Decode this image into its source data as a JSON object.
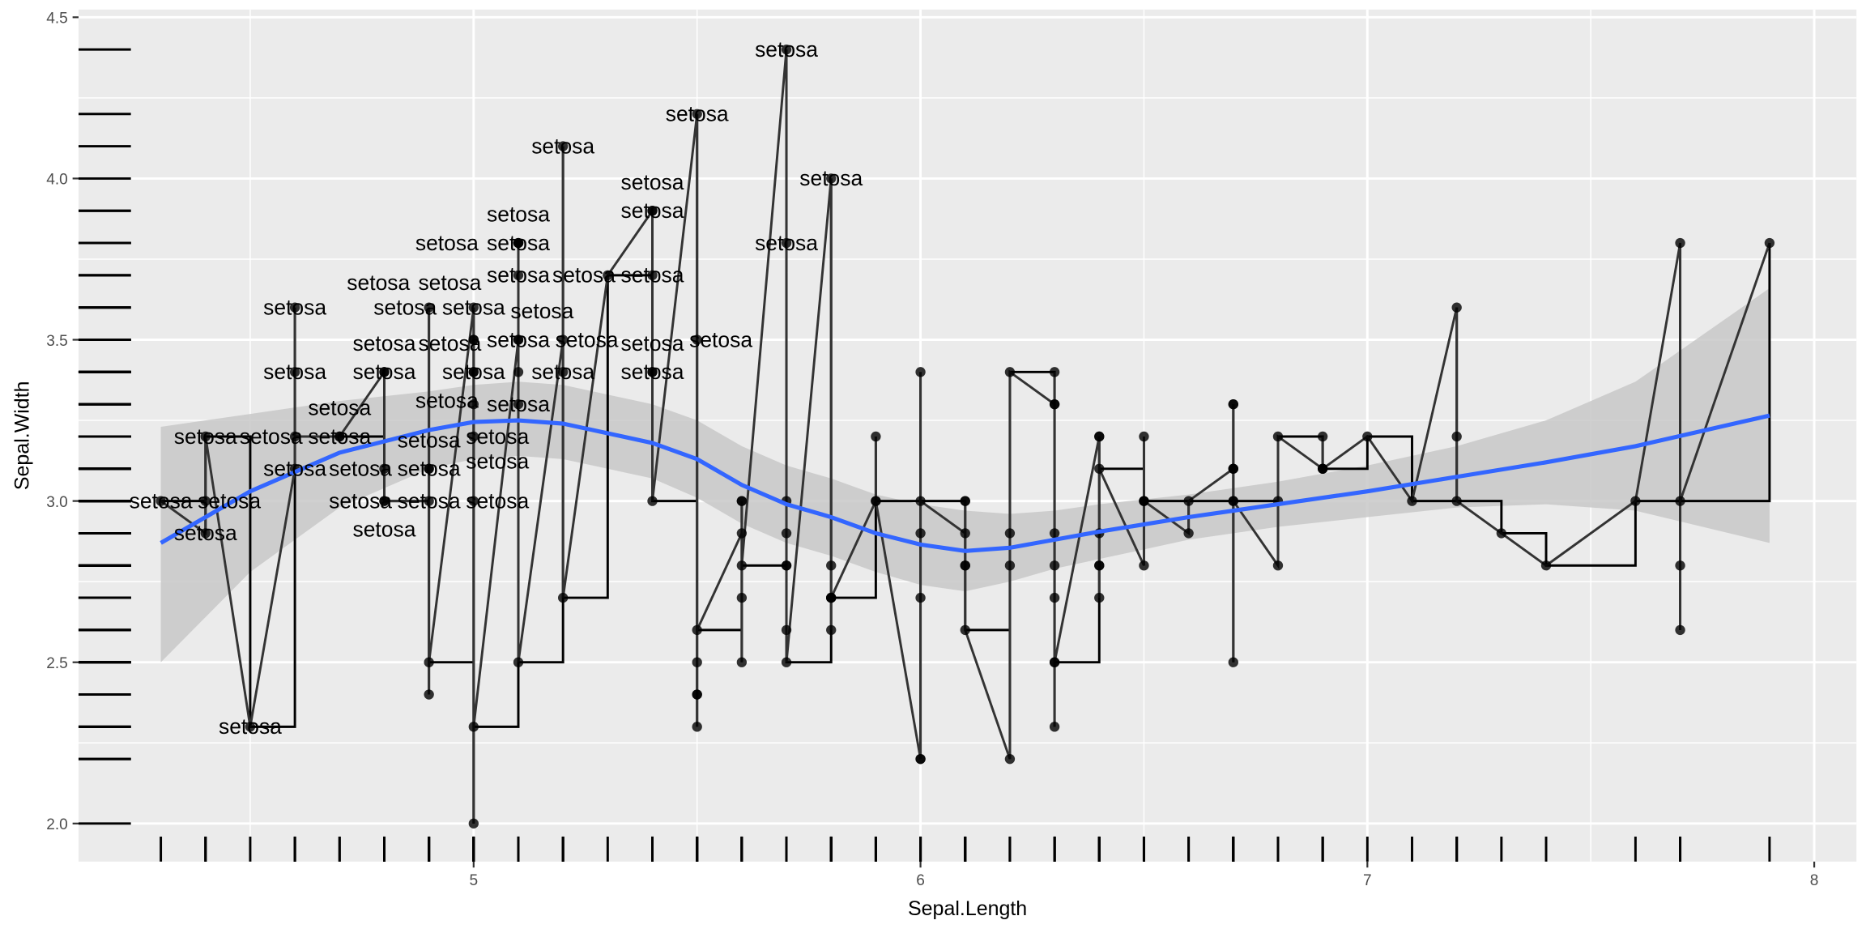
{
  "chart_data": {
    "type": "scatter",
    "title": "",
    "xlabel": "Sepal.Length",
    "ylabel": "Sepal.Width",
    "xlim": [
      4.18,
      8.08
    ],
    "ylim": [
      1.88,
      4.52
    ],
    "x_ticks": [
      5,
      6,
      7,
      8
    ],
    "x_tick_labels": [
      "5",
      "6",
      "7",
      "8"
    ],
    "y_ticks": [
      2.0,
      2.5,
      3.0,
      3.5,
      4.0,
      4.5
    ],
    "y_tick_labels": [
      "2.0",
      "2.5",
      "3.0",
      "3.5",
      "4.0",
      "4.5"
    ],
    "grid": true,
    "label_text": "setosa",
    "colors": {
      "panel": "#ebebeb",
      "grid": "#ffffff",
      "points": "#000000",
      "step": "#000000",
      "line": "#333333",
      "smooth": "#3366ff",
      "band": "#c8c8c8"
    },
    "layers": [
      "point",
      "text (setosa only)",
      "step",
      "line",
      "smooth (loess) with CI band",
      "rug (left, bottom)"
    ],
    "points": [
      [
        5.1,
        3.5,
        "setosa"
      ],
      [
        4.9,
        3.0,
        "setosa"
      ],
      [
        4.7,
        3.2,
        "setosa"
      ],
      [
        4.6,
        3.1,
        "setosa"
      ],
      [
        5.0,
        3.6,
        "setosa"
      ],
      [
        5.4,
        3.9,
        "setosa"
      ],
      [
        4.6,
        3.4,
        "setosa"
      ],
      [
        5.0,
        3.4,
        "setosa"
      ],
      [
        4.4,
        2.9,
        "setosa"
      ],
      [
        4.9,
        3.1,
        "setosa"
      ],
      [
        5.4,
        3.7,
        "setosa"
      ],
      [
        4.8,
        3.4,
        "setosa"
      ],
      [
        4.8,
        3.0,
        "setosa"
      ],
      [
        4.3,
        3.0,
        "setosa"
      ],
      [
        5.8,
        4.0,
        "setosa"
      ],
      [
        5.7,
        4.4,
        "setosa"
      ],
      [
        5.4,
        3.9,
        "setosa"
      ],
      [
        5.1,
        3.5,
        "setosa"
      ],
      [
        5.7,
        3.8,
        "setosa"
      ],
      [
        5.1,
        3.8,
        "setosa"
      ],
      [
        5.4,
        3.4,
        "setosa"
      ],
      [
        5.1,
        3.7,
        "setosa"
      ],
      [
        4.6,
        3.6,
        "setosa"
      ],
      [
        5.1,
        3.3,
        "setosa"
      ],
      [
        4.8,
        3.4,
        "setosa"
      ],
      [
        5.0,
        3.0,
        "setosa"
      ],
      [
        5.0,
        3.4,
        "setosa"
      ],
      [
        5.2,
        3.5,
        "setosa"
      ],
      [
        5.2,
        3.4,
        "setosa"
      ],
      [
        4.7,
        3.2,
        "setosa"
      ],
      [
        4.8,
        3.1,
        "setosa"
      ],
      [
        5.4,
        3.4,
        "setosa"
      ],
      [
        5.2,
        4.1,
        "setosa"
      ],
      [
        5.5,
        4.2,
        "setosa"
      ],
      [
        4.9,
        3.1,
        "setosa"
      ],
      [
        5.0,
        3.2,
        "setosa"
      ],
      [
        5.5,
        3.5,
        "setosa"
      ],
      [
        4.9,
        3.6,
        "setosa"
      ],
      [
        4.4,
        3.0,
        "setosa"
      ],
      [
        5.1,
        3.4,
        "setosa"
      ],
      [
        5.0,
        3.5,
        "setosa"
      ],
      [
        4.5,
        2.3,
        "setosa"
      ],
      [
        4.4,
        3.2,
        "setosa"
      ],
      [
        5.0,
        3.5,
        "setosa"
      ],
      [
        5.1,
        3.8,
        "setosa"
      ],
      [
        4.8,
        3.0,
        "setosa"
      ],
      [
        5.1,
        3.8,
        "setosa"
      ],
      [
        4.6,
        3.2,
        "setosa"
      ],
      [
        5.3,
        3.7,
        "setosa"
      ],
      [
        5.0,
        3.3,
        "setosa"
      ],
      [
        7.0,
        3.2,
        ""
      ],
      [
        6.4,
        3.2,
        ""
      ],
      [
        6.9,
        3.1,
        ""
      ],
      [
        5.5,
        2.3,
        ""
      ],
      [
        6.5,
        2.8,
        ""
      ],
      [
        5.7,
        2.8,
        ""
      ],
      [
        6.3,
        3.3,
        ""
      ],
      [
        4.9,
        2.4,
        ""
      ],
      [
        6.6,
        2.9,
        ""
      ],
      [
        5.2,
        2.7,
        ""
      ],
      [
        5.0,
        2.0,
        ""
      ],
      [
        5.9,
        3.0,
        ""
      ],
      [
        6.0,
        2.2,
        ""
      ],
      [
        6.1,
        2.9,
        ""
      ],
      [
        5.6,
        2.9,
        ""
      ],
      [
        6.7,
        3.1,
        ""
      ],
      [
        5.6,
        3.0,
        ""
      ],
      [
        5.8,
        2.7,
        ""
      ],
      [
        6.2,
        2.2,
        ""
      ],
      [
        5.6,
        2.5,
        ""
      ],
      [
        5.9,
        3.2,
        ""
      ],
      [
        6.1,
        2.8,
        ""
      ],
      [
        6.3,
        2.5,
        ""
      ],
      [
        6.1,
        2.8,
        ""
      ],
      [
        6.4,
        2.9,
        ""
      ],
      [
        6.6,
        3.0,
        ""
      ],
      [
        6.8,
        2.8,
        ""
      ],
      [
        6.7,
        3.0,
        ""
      ],
      [
        6.0,
        2.9,
        ""
      ],
      [
        5.7,
        2.6,
        ""
      ],
      [
        5.5,
        2.4,
        ""
      ],
      [
        5.5,
        2.4,
        ""
      ],
      [
        5.8,
        2.7,
        ""
      ],
      [
        6.0,
        2.7,
        ""
      ],
      [
        5.4,
        3.0,
        ""
      ],
      [
        6.0,
        3.4,
        ""
      ],
      [
        6.7,
        3.1,
        ""
      ],
      [
        6.3,
        2.3,
        ""
      ],
      [
        5.6,
        3.0,
        ""
      ],
      [
        5.5,
        2.5,
        ""
      ],
      [
        5.5,
        2.6,
        ""
      ],
      [
        6.1,
        3.0,
        ""
      ],
      [
        5.8,
        2.6,
        ""
      ],
      [
        5.0,
        2.3,
        ""
      ],
      [
        5.6,
        2.7,
        ""
      ],
      [
        5.7,
        3.0,
        ""
      ],
      [
        5.7,
        2.9,
        ""
      ],
      [
        6.2,
        2.9,
        ""
      ],
      [
        5.1,
        2.5,
        ""
      ],
      [
        5.7,
        2.8,
        ""
      ],
      [
        6.3,
        3.3,
        ""
      ],
      [
        5.8,
        2.7,
        ""
      ],
      [
        7.1,
        3.0,
        ""
      ],
      [
        6.3,
        2.9,
        ""
      ],
      [
        6.5,
        3.0,
        ""
      ],
      [
        7.6,
        3.0,
        ""
      ],
      [
        4.9,
        2.5,
        ""
      ],
      [
        7.3,
        2.9,
        ""
      ],
      [
        6.7,
        2.5,
        ""
      ],
      [
        7.2,
        3.6,
        ""
      ],
      [
        6.5,
        3.2,
        ""
      ],
      [
        6.4,
        2.7,
        ""
      ],
      [
        6.8,
        3.0,
        ""
      ],
      [
        5.7,
        2.5,
        ""
      ],
      [
        5.8,
        2.8,
        ""
      ],
      [
        6.4,
        3.2,
        ""
      ],
      [
        6.5,
        3.0,
        ""
      ],
      [
        7.7,
        3.8,
        ""
      ],
      [
        7.7,
        2.6,
        ""
      ],
      [
        6.0,
        2.2,
        ""
      ],
      [
        6.9,
        3.2,
        ""
      ],
      [
        5.6,
        2.8,
        ""
      ],
      [
        7.7,
        2.8,
        ""
      ],
      [
        6.3,
        2.7,
        ""
      ],
      [
        6.7,
        3.3,
        ""
      ],
      [
        7.2,
        3.2,
        ""
      ],
      [
        6.2,
        2.8,
        ""
      ],
      [
        6.1,
        3.0,
        ""
      ],
      [
        6.4,
        2.8,
        ""
      ],
      [
        7.2,
        3.0,
        ""
      ],
      [
        7.4,
        2.8,
        ""
      ],
      [
        7.9,
        3.8,
        ""
      ],
      [
        6.4,
        2.8,
        ""
      ],
      [
        6.3,
        2.8,
        ""
      ],
      [
        6.1,
        2.6,
        ""
      ],
      [
        7.7,
        3.0,
        ""
      ],
      [
        6.3,
        3.4,
        ""
      ],
      [
        6.4,
        3.1,
        ""
      ],
      [
        6.0,
        3.0,
        ""
      ],
      [
        6.9,
        3.1,
        ""
      ],
      [
        6.7,
        3.1,
        ""
      ],
      [
        6.9,
        3.1,
        ""
      ],
      [
        5.8,
        2.7,
        ""
      ],
      [
        6.8,
        3.2,
        ""
      ],
      [
        6.7,
        3.3,
        ""
      ],
      [
        6.7,
        3.0,
        ""
      ],
      [
        6.3,
        2.5,
        ""
      ],
      [
        6.5,
        3.0,
        ""
      ],
      [
        6.2,
        3.4,
        ""
      ],
      [
        5.9,
        3.0,
        ""
      ]
    ],
    "smooth": {
      "x": [
        4.3,
        4.5,
        4.7,
        4.9,
        5.0,
        5.1,
        5.2,
        5.4,
        5.5,
        5.6,
        5.7,
        5.8,
        5.9,
        6.0,
        6.1,
        6.2,
        6.3,
        6.4,
        6.6,
        6.8,
        7.0,
        7.2,
        7.4,
        7.6,
        7.9
      ],
      "y": [
        2.87,
        3.03,
        3.15,
        3.22,
        3.245,
        3.25,
        3.24,
        3.18,
        3.13,
        3.05,
        2.99,
        2.95,
        2.9,
        2.865,
        2.845,
        2.855,
        2.88,
        2.905,
        2.95,
        2.99,
        3.03,
        3.075,
        3.12,
        3.17,
        3.265
      ],
      "lower": [
        2.5,
        2.78,
        2.98,
        3.1,
        3.13,
        3.14,
        3.13,
        3.07,
        3.01,
        2.93,
        2.87,
        2.83,
        2.78,
        2.74,
        2.72,
        2.75,
        2.79,
        2.82,
        2.88,
        2.92,
        2.95,
        2.98,
        2.99,
        2.97,
        2.87
      ],
      "upper": [
        3.23,
        3.27,
        3.31,
        3.34,
        3.36,
        3.37,
        3.36,
        3.3,
        3.25,
        3.17,
        3.11,
        3.07,
        3.02,
        2.99,
        2.97,
        2.96,
        2.97,
        2.99,
        3.02,
        3.06,
        3.11,
        3.17,
        3.25,
        3.37,
        3.66
      ]
    }
  }
}
